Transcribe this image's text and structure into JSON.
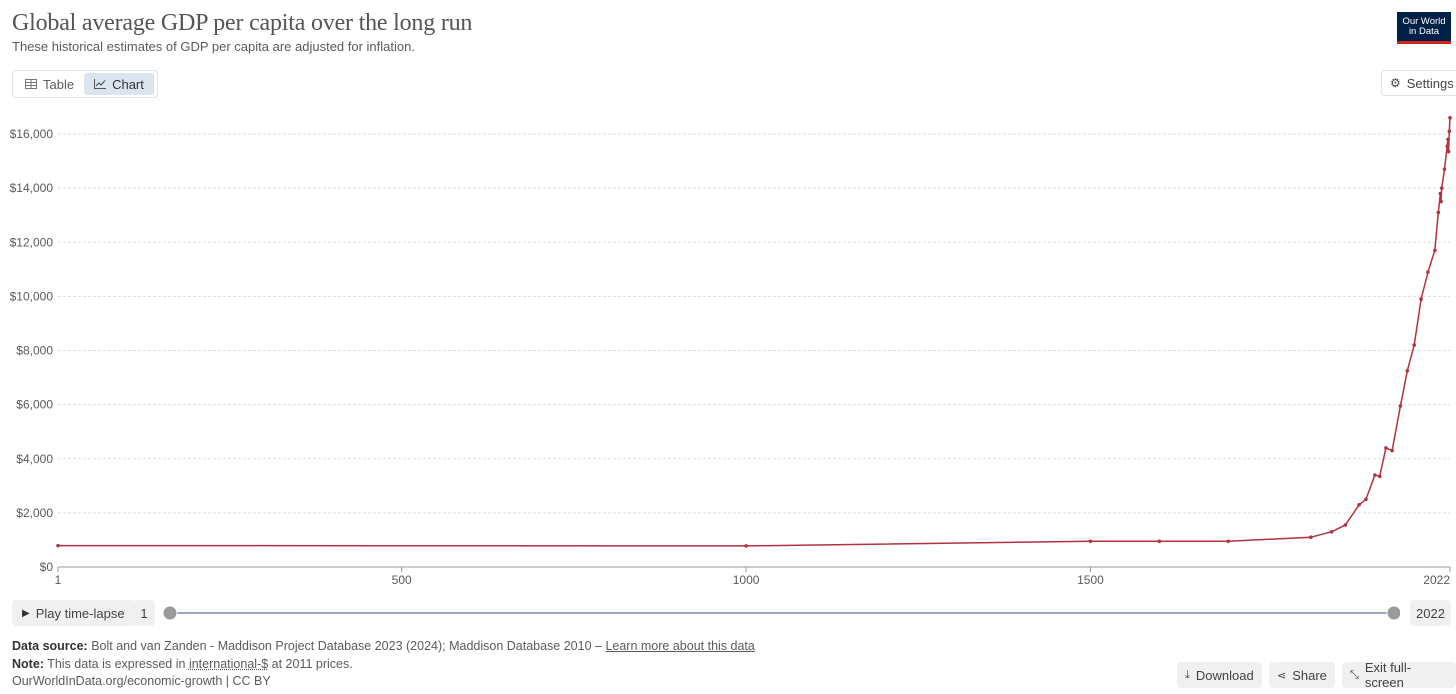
{
  "header": {
    "title": "Global average GDP per capita over the long run",
    "subtitle": "These historical estimates of GDP per capita are adjusted for inflation.",
    "logo_line1": "Our World",
    "logo_line2": "in Data"
  },
  "tabs": [
    {
      "label": "Table",
      "icon": "table-icon",
      "active": false
    },
    {
      "label": "Chart",
      "icon": "line-chart-icon",
      "active": true
    }
  ],
  "settings_label": "Settings",
  "timeline": {
    "play_label": "Play time-lapse",
    "start": "1",
    "end": "2022"
  },
  "footer": {
    "source_label": "Data source:",
    "source_text": "Bolt and van Zanden - Maddison Project Database 2023 (2024); Maddison Database 2010 –",
    "learn_more": "Learn more about this data",
    "note_label": "Note:",
    "note_text_1": "This data is expressed in",
    "note_link": "international-$",
    "note_text_2": "at 2011 prices.",
    "credit": "OurWorldInData.org/economic-growth | CC BY",
    "download_label": "Download",
    "share_label": "Share",
    "exit_label": "Exit full-screen"
  },
  "colors": {
    "line": "#b13340",
    "grid": "#dddddd",
    "axis": "#5b5b5b"
  },
  "chart_data": {
    "type": "line",
    "title": "Global average GDP per capita over the long run",
    "xlim": [
      1,
      2022
    ],
    "ylim": [
      0,
      16000
    ],
    "x_ticks": [
      {
        "value": 1,
        "label": "1"
      },
      {
        "value": 500,
        "label": "500"
      },
      {
        "value": 1000,
        "label": "1000"
      },
      {
        "value": 1500,
        "label": "1500"
      },
      {
        "value": 2022,
        "label": "2022"
      }
    ],
    "y_ticks": [
      {
        "value": 0,
        "label": "$0"
      },
      {
        "value": 2000,
        "label": "$2,000"
      },
      {
        "value": 4000,
        "label": "$4,000"
      },
      {
        "value": 6000,
        "label": "$6,000"
      },
      {
        "value": 8000,
        "label": "$8,000"
      },
      {
        "value": 10000,
        "label": "$10,000"
      },
      {
        "value": 12000,
        "label": "$12,000"
      },
      {
        "value": 14000,
        "label": "$14,000"
      },
      {
        "value": 16000,
        "label": "$16,000"
      }
    ],
    "grid": true,
    "series": [
      {
        "x": [
          1,
          1000,
          1500,
          1600,
          1700,
          1820,
          1850,
          1870,
          1890,
          1900,
          1913,
          1920,
          1929,
          1938,
          1950,
          1960,
          1970,
          1980,
          1990,
          2000,
          2005,
          2008,
          2009,
          2010,
          2014,
          2018,
          2019,
          2020,
          2021,
          2022
        ],
        "y": [
          790,
          780,
          950,
          950,
          950,
          1100,
          1300,
          1550,
          2300,
          2500,
          3400,
          3350,
          4400,
          4300,
          5950,
          7250,
          8200,
          9900,
          10900,
          11700,
          13100,
          13800,
          13500,
          14000,
          14700,
          15550,
          15800,
          15350,
          16100,
          16600
        ]
      }
    ]
  }
}
